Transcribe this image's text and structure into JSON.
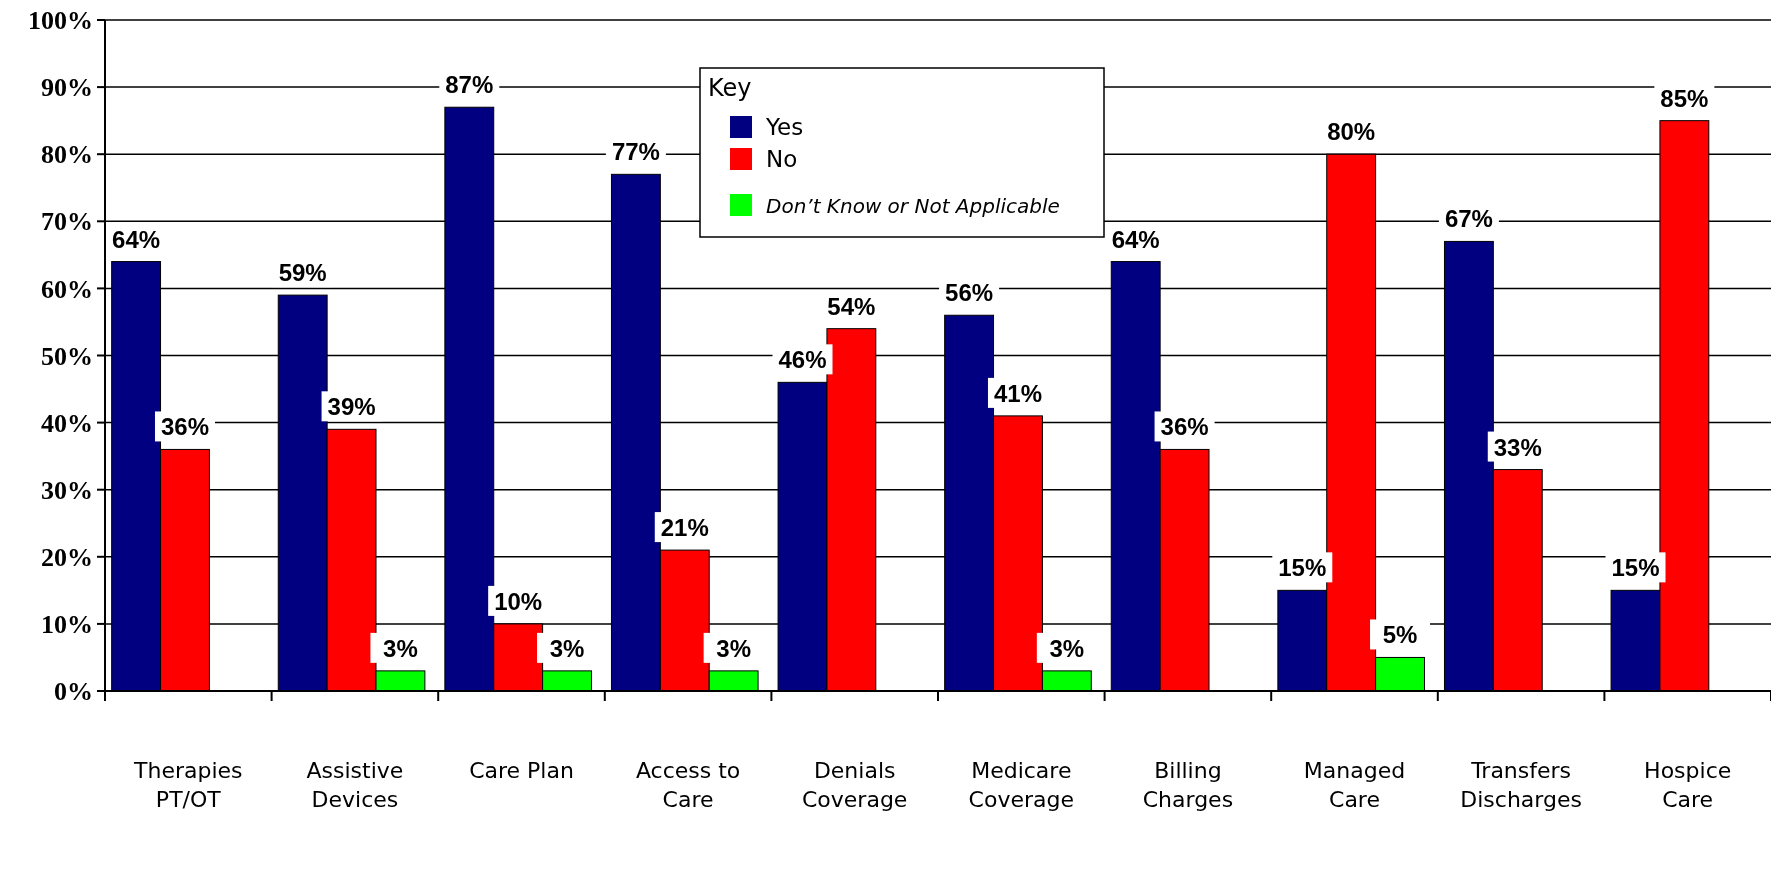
{
  "chart_data": {
    "type": "bar",
    "categories": [
      "Therapies\nPT/OT",
      "Assistive\nDevices",
      "Care Plan",
      "Access to\nCare",
      "Denials\nCoverage",
      "Medicare\nCoverage",
      "Billing\nCharges",
      "Managed\nCare",
      "Transfers\nDischarges",
      "Hospice\nCare"
    ],
    "series": [
      {
        "name": "Yes",
        "color": "#000080",
        "values": [
          64,
          59,
          87,
          77,
          46,
          56,
          64,
          15,
          67,
          15
        ],
        "value_labels": [
          "64%",
          "59%",
          "87%",
          "77%",
          "46%",
          "56%",
          "64%",
          "15%",
          "67%",
          "15%"
        ]
      },
      {
        "name": "No",
        "color": "#ff0000",
        "values": [
          36,
          39,
          10,
          21,
          54,
          41,
          36,
          80,
          33,
          85
        ],
        "value_labels": [
          "36%",
          "39%",
          "10%",
          "21%",
          "54%",
          "41%",
          "36%",
          "80%",
          "33%",
          "85%"
        ]
      },
      {
        "name": "Don’t Know or Not Applicable",
        "color": "#00ff00",
        "values": [
          null,
          3,
          3,
          3,
          null,
          3,
          null,
          5,
          null,
          null
        ],
        "value_labels": [
          null,
          "3%",
          "3%",
          "3%",
          null,
          "3%",
          null,
          "5%",
          null,
          null
        ]
      }
    ],
    "ylim": [
      0,
      100
    ],
    "yticks": [
      {
        "value": 0,
        "label": "0%"
      },
      {
        "value": 10,
        "label": "10%"
      },
      {
        "value": 20,
        "label": "20%"
      },
      {
        "value": 30,
        "label": "30%"
      },
      {
        "value": 40,
        "label": "40%"
      },
      {
        "value": 50,
        "label": "50%"
      },
      {
        "value": 60,
        "label": "60%"
      },
      {
        "value": 70,
        "label": "70%"
      },
      {
        "value": 80,
        "label": "80%"
      },
      {
        "value": 90,
        "label": "90%"
      },
      {
        "value": 100,
        "label": "100%"
      }
    ],
    "grid": "y",
    "legend": "top",
    "legend_title": "Key"
  }
}
